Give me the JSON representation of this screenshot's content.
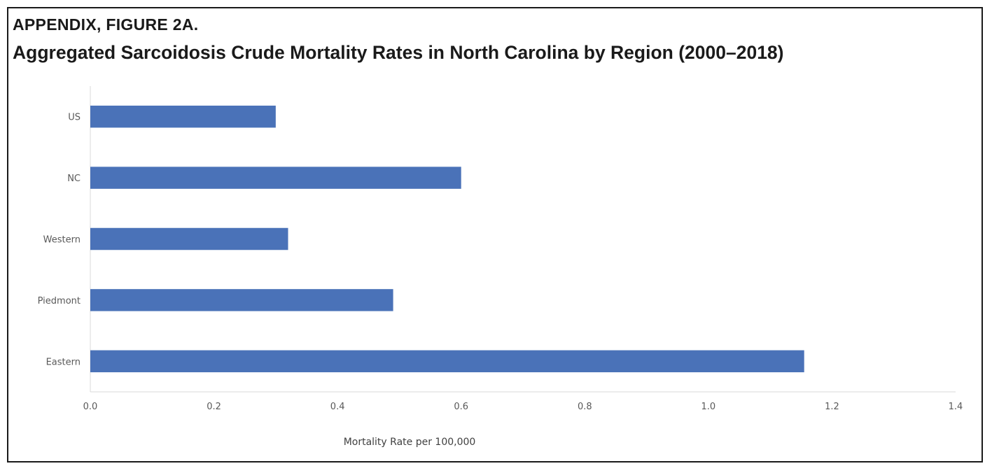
{
  "figure": {
    "label": "APPENDIX, FIGURE 2A.",
    "title": "Aggregated Sarcoidosis Crude Mortality Rates in North Carolina by Region (2000–2018)"
  },
  "colors": {
    "bar": "#4a72b8",
    "axis": "#d9d9d9",
    "text": "#595959"
  },
  "chart_data": {
    "type": "bar",
    "orientation": "horizontal",
    "title": "Aggregated Sarcoidosis Crude Mortality Rates in North Carolina by Region (2000–2018)",
    "categories": [
      "US",
      "NC",
      "Western",
      "Piedmont",
      "Eastern"
    ],
    "values": [
      0.3,
      0.6,
      0.32,
      0.49,
      1.155
    ],
    "xlabel": "Mortality Rate per 100,000",
    "ylabel": "",
    "xlim": [
      0,
      1.4
    ],
    "xticks": [
      "0.0",
      "0.2",
      "0.4",
      "0.6",
      "0.8",
      "1.0",
      "1.2",
      "1.4"
    ],
    "grid": false,
    "legend": "none"
  }
}
